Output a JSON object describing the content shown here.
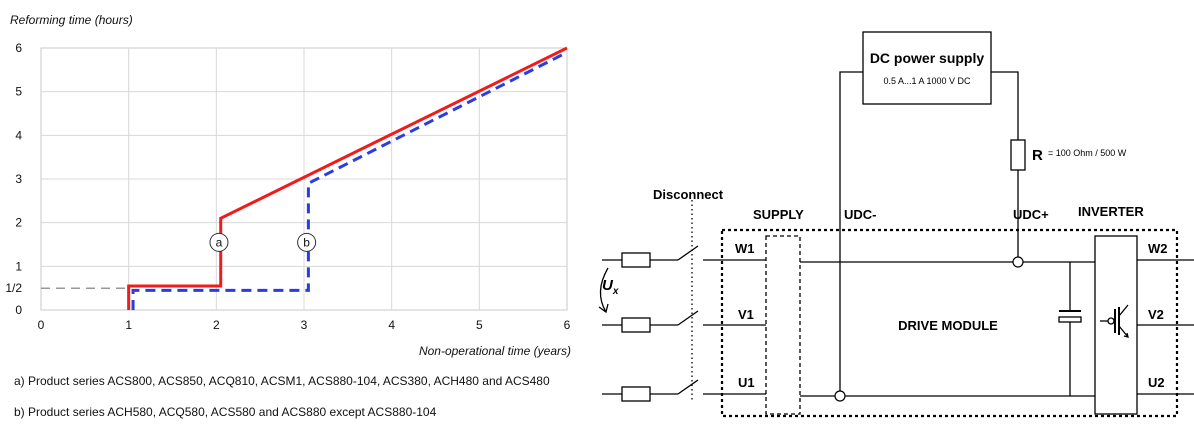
{
  "chart_data": {
    "type": "line",
    "ylabel": "Reforming time (hours)",
    "xlabel": "Non-operational time (years)",
    "xlim": [
      0,
      6
    ],
    "ylim": [
      0,
      6
    ],
    "x_ticks": [
      "0",
      "1",
      "2",
      "3",
      "4",
      "5",
      "6"
    ],
    "y_ticks": [
      {
        "value": 0,
        "label": "0"
      },
      {
        "value": 0.5,
        "label": "1/2"
      },
      {
        "value": 1,
        "label": "1"
      },
      {
        "value": 2,
        "label": "2"
      },
      {
        "value": 3,
        "label": "3"
      },
      {
        "value": 4,
        "label": "4"
      },
      {
        "value": 5,
        "label": "5"
      },
      {
        "value": 6,
        "label": "6"
      }
    ],
    "grid": true,
    "series": [
      {
        "name": "a",
        "color": "#ee1c1c",
        "style": "solid",
        "points": [
          [
            1,
            0
          ],
          [
            1,
            0.55
          ],
          [
            2.05,
            0.55
          ],
          [
            2.05,
            2.1
          ],
          [
            6,
            6
          ]
        ]
      },
      {
        "name": "b",
        "color": "#2a3de0",
        "style": "dashed",
        "points": [
          [
            1.05,
            0
          ],
          [
            1.05,
            0.45
          ],
          [
            3.05,
            0.45
          ],
          [
            3.05,
            2.9
          ],
          [
            6,
            5.9
          ]
        ]
      }
    ],
    "reference_line": {
      "y": 0.5,
      "x_to": 1,
      "style": "dashed",
      "color": "#777777"
    },
    "annotations": [
      {
        "label": "a",
        "x": 2.03,
        "y": 1.55
      },
      {
        "label": "b",
        "x": 3.03,
        "y": 1.55
      }
    ]
  },
  "notes": [
    "a) Product series ACS800, ACS850, ACQ810, ACSM1, ACS880-104, ACS380, ACH480 and ACS480",
    "b) Product series ACH580, ACQ580, ACS580 and ACS880 except ACS880-104"
  ],
  "circuit": {
    "dc_supply_title": "DC power supply",
    "dc_supply_rating": "0.5 A...1 A 1000 V DC",
    "resistor_label": "R",
    "resistor_value": "= 100 Ohm / 500 W",
    "disconnect_label": "Disconnect",
    "supply_label": "SUPPLY",
    "udc_minus_label": "UDC-",
    "udc_plus_label": "UDC+",
    "inverter_label": "INVERTER",
    "drive_module_label": "DRIVE MODULE",
    "ux_label": "U",
    "ux_sub": "x",
    "terminals_in": [
      "W1",
      "V1",
      "U1"
    ],
    "terminals_out": [
      "W2",
      "V2",
      "U2"
    ]
  }
}
